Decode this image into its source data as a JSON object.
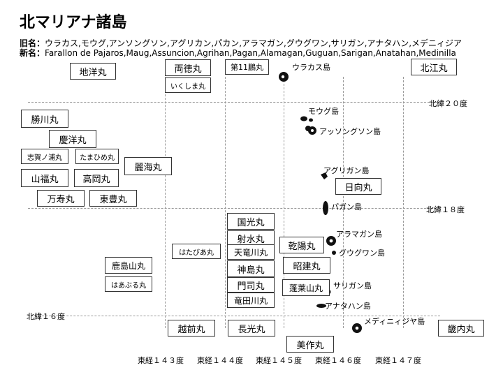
{
  "title": "北マリアナ諸島",
  "old_names": {
    "label": "旧名：",
    "value": "ウラカス,モウグ,アンソングソン,アグリカン,パカン,アラマガン,グウグワン,サリガン,アナタハン,メデニィジア"
  },
  "new_names": {
    "label": "新名：",
    "value": "Farallon de Pajaros,Maug,Assuncion,Agrihan,Pagan,Alamagan,Guguan,Sarigan,Anatahan,Medinilla"
  },
  "latitudes": [
    "北緯２０度",
    "北緯１８度",
    "北緯１６度"
  ],
  "longitudes": [
    "東経１４３度",
    "東経１４４度",
    "東経１４５度",
    "東経１４６度",
    "東経１４７度"
  ],
  "islands": [
    "ウラカス島",
    "モウグ島",
    "アッソングソン島",
    "アグリガン島",
    "パガン島",
    "アラマガン島",
    "グウグワン島",
    "サリガン島",
    "アナタハン島",
    "メディニィジヤ島"
  ],
  "ships": {
    "chiyo": "地洋丸",
    "ryotoku": "両徳丸",
    "dai11": "第11鵬丸",
    "hokko": "北江丸",
    "ikushima": "いくしま丸",
    "katsukawa": "勝川丸",
    "keiyo": "慶洋丸",
    "shiganoura": "志賀ノ浦丸",
    "tamahime": "たまひめ丸",
    "reikai": "麗海丸",
    "yamafuku": "山福丸",
    "takaoka": "高岡丸",
    "manju": "万寿丸",
    "toho": "東豊丸",
    "hyuga": "日向丸",
    "kokko": "国光丸",
    "shasui": "射水丸",
    "tenryugawa": "天竜川丸",
    "kamishima": "神島丸",
    "moji": "門司丸",
    "ryutagawa": "竜田川丸",
    "kenyo": "乾陽丸",
    "shoken": "昭建丸",
    "horaisan": "蓬莱山丸",
    "hatabia": "はたびあ丸",
    "kashimayama": "鹿島山丸",
    "haaburu": "はあぶる丸",
    "echizen": "越前丸",
    "choko": "長光丸",
    "mimasaka": "美作丸",
    "kinai": "畿内丸"
  }
}
